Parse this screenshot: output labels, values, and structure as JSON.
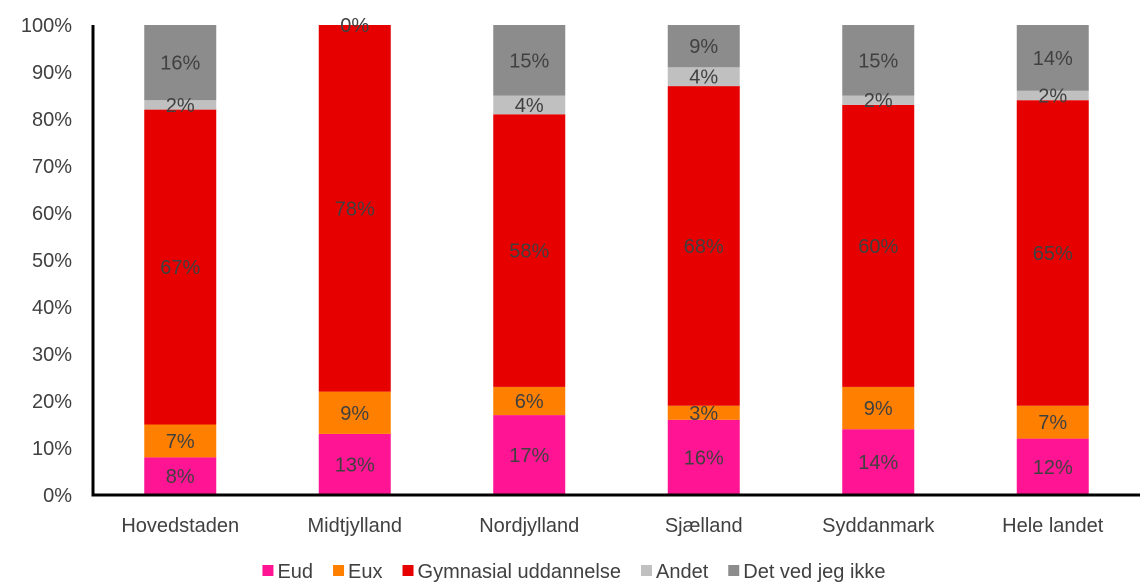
{
  "chart_data": {
    "type": "bar",
    "stacked": true,
    "percent": true,
    "categories": [
      "Hovedstaden",
      "Midtjylland",
      "Nordjylland",
      "Sjælland",
      "Syddanmark",
      "Hele landet"
    ],
    "series": [
      {
        "name": "Eud",
        "color": "#FF1493",
        "values": [
          8,
          13,
          17,
          16,
          14,
          12
        ],
        "labels": [
          "8%",
          "13%",
          "17%",
          "16%",
          "14%",
          "12%"
        ]
      },
      {
        "name": "Eux",
        "color": "#FF8000",
        "values": [
          7,
          9,
          6,
          3,
          9,
          7
        ],
        "labels": [
          "7%",
          "9%",
          "6%",
          "3%",
          "9%",
          "7%"
        ]
      },
      {
        "name": "Gymnasial uddannelse",
        "color": "#E60000",
        "values": [
          67,
          78,
          58,
          68,
          60,
          65
        ],
        "labels": [
          "67%",
          "78%",
          "58%",
          "68%",
          "60%",
          "65%"
        ]
      },
      {
        "name": "Andet",
        "color": "#C0C0C0",
        "values": [
          2,
          0,
          4,
          4,
          2,
          2
        ],
        "labels": [
          "2%",
          "0%",
          "4%",
          "4%",
          "2%",
          "2%"
        ]
      },
      {
        "name": "Det ved jeg ikke",
        "color": "#8C8C8C",
        "values": [
          16,
          0,
          15,
          9,
          15,
          14
        ],
        "labels": [
          "16%",
          "",
          "15%",
          "9%",
          "15%",
          "14%"
        ]
      }
    ],
    "ylim": [
      0,
      100
    ],
    "yticks": [
      "0%",
      "10%",
      "20%",
      "30%",
      "40%",
      "50%",
      "60%",
      "70%",
      "80%",
      "90%",
      "100%"
    ],
    "grid": false,
    "legend": "bottom",
    "title": "",
    "xlabel": "",
    "ylabel": ""
  }
}
